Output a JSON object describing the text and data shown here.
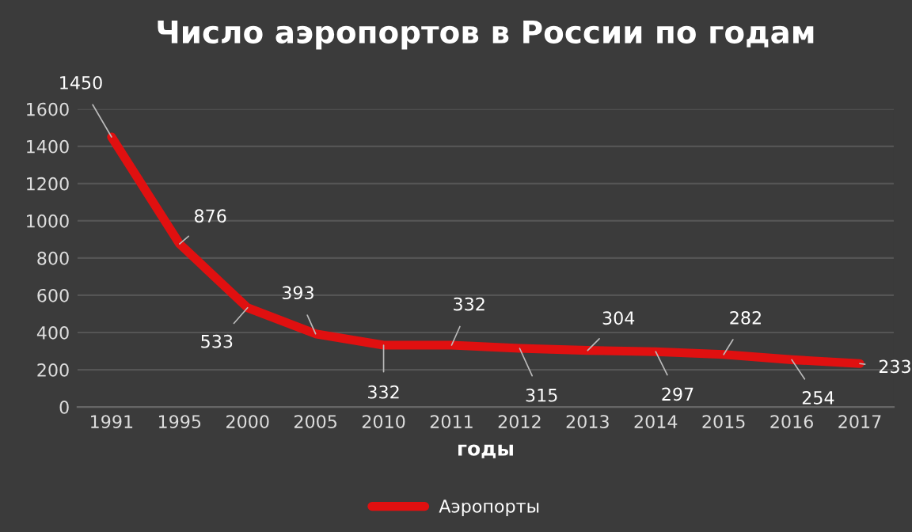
{
  "chart_data": {
    "type": "line",
    "title": "Число аэропортов в России по годам",
    "xlabel": "годы",
    "categories": [
      "1991",
      "1995",
      "2000",
      "2005",
      "2010",
      "2011",
      "2012",
      "2013",
      "2014",
      "2015",
      "2016",
      "2017"
    ],
    "series": [
      {
        "name": "Аэропорты",
        "color": "#e01010",
        "values": [
          1450,
          876,
          533,
          393,
          332,
          332,
          315,
          304,
          297,
          282,
          254,
          233
        ]
      }
    ],
    "ylim": [
      0,
      1600
    ],
    "yticks": [
      0,
      200,
      400,
      600,
      800,
      1000,
      1200,
      1400,
      1600
    ],
    "grid": "y",
    "legend": "bottom",
    "data_labels": true,
    "marker": "none",
    "line_style": "solid"
  }
}
